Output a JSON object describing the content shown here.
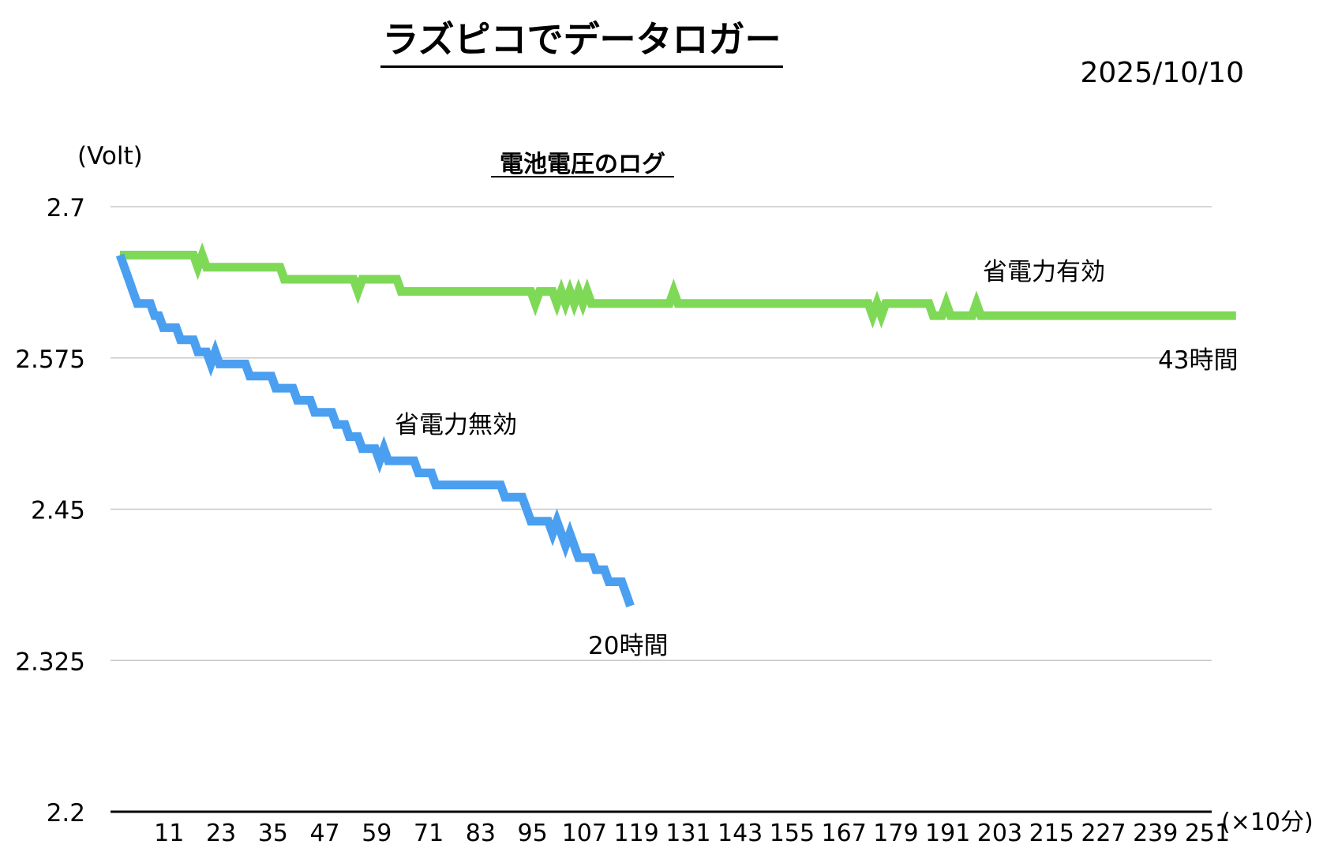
{
  "header": {
    "title": "ラズピコでデータロガー",
    "date": "2025/10/10"
  },
  "chart_data": {
    "type": "line",
    "title": "電池電圧のログ",
    "ylabel": "(Volt)",
    "xlabel": "(×10分)",
    "ylim": [
      2.2,
      2.7
    ],
    "yticks": [
      "2.2",
      "2.325",
      "2.45",
      "2.575",
      "2.7"
    ],
    "xlim": [
      0,
      258
    ],
    "xticks": [
      11,
      23,
      35,
      47,
      59,
      71,
      83,
      95,
      107,
      119,
      131,
      143,
      155,
      167,
      179,
      191,
      203,
      215,
      227,
      239,
      251
    ],
    "grid": true,
    "legend": "none",
    "series": [
      {
        "name": "省電力有効",
        "color": "#7ed957",
        "end_label": "43時間",
        "points": [
          [
            0,
            2.66
          ],
          [
            17,
            2.66
          ],
          [
            18,
            2.65
          ],
          [
            19,
            2.66
          ],
          [
            20,
            2.65
          ],
          [
            37,
            2.65
          ],
          [
            38,
            2.64
          ],
          [
            54,
            2.64
          ],
          [
            55,
            2.63
          ],
          [
            56,
            2.64
          ],
          [
            64,
            2.64
          ],
          [
            65,
            2.63
          ],
          [
            95,
            2.63
          ],
          [
            96,
            2.62
          ],
          [
            97,
            2.63
          ],
          [
            100,
            2.63
          ],
          [
            101,
            2.62
          ],
          [
            102,
            2.63
          ],
          [
            103,
            2.62
          ],
          [
            104,
            2.63
          ],
          [
            105,
            2.62
          ],
          [
            106,
            2.63
          ],
          [
            107,
            2.62
          ],
          [
            108,
            2.63
          ],
          [
            109,
            2.62
          ],
          [
            127,
            2.62
          ],
          [
            128,
            2.63
          ],
          [
            129,
            2.62
          ],
          [
            173,
            2.62
          ],
          [
            174,
            2.61
          ],
          [
            175,
            2.62
          ],
          [
            176,
            2.61
          ],
          [
            177,
            2.62
          ],
          [
            187,
            2.62
          ],
          [
            188,
            2.61
          ],
          [
            190,
            2.61
          ],
          [
            191,
            2.62
          ],
          [
            192,
            2.61
          ],
          [
            197,
            2.61
          ],
          [
            198,
            2.62
          ],
          [
            199,
            2.61
          ],
          [
            258,
            2.61
          ]
        ]
      },
      {
        "name": "省電力無効",
        "color": "#4a9ff0",
        "end_label": "20時間",
        "points": [
          [
            0,
            2.66
          ],
          [
            1,
            2.65
          ],
          [
            2,
            2.64
          ],
          [
            3,
            2.63
          ],
          [
            4,
            2.62
          ],
          [
            7,
            2.62
          ],
          [
            8,
            2.61
          ],
          [
            9,
            2.61
          ],
          [
            10,
            2.6
          ],
          [
            13,
            2.6
          ],
          [
            14,
            2.59
          ],
          [
            17,
            2.59
          ],
          [
            18,
            2.58
          ],
          [
            20,
            2.58
          ],
          [
            21,
            2.57
          ],
          [
            22,
            2.58
          ],
          [
            23,
            2.57
          ],
          [
            29,
            2.57
          ],
          [
            30,
            2.56
          ],
          [
            35,
            2.56
          ],
          [
            36,
            2.55
          ],
          [
            40,
            2.55
          ],
          [
            41,
            2.54
          ],
          [
            44,
            2.54
          ],
          [
            45,
            2.53
          ],
          [
            49,
            2.53
          ],
          [
            50,
            2.52
          ],
          [
            52,
            2.52
          ],
          [
            53,
            2.51
          ],
          [
            55,
            2.51
          ],
          [
            56,
            2.5
          ],
          [
            59,
            2.5
          ],
          [
            60,
            2.49
          ],
          [
            61,
            2.5
          ],
          [
            62,
            2.49
          ],
          [
            68,
            2.49
          ],
          [
            69,
            2.48
          ],
          [
            72,
            2.48
          ],
          [
            73,
            2.47
          ],
          [
            88,
            2.47
          ],
          [
            89,
            2.46
          ],
          [
            93,
            2.46
          ],
          [
            94,
            2.45
          ],
          [
            95,
            2.44
          ],
          [
            99,
            2.44
          ],
          [
            100,
            2.43
          ],
          [
            101,
            2.44
          ],
          [
            102,
            2.43
          ],
          [
            103,
            2.42
          ],
          [
            104,
            2.43
          ],
          [
            105,
            2.42
          ],
          [
            106,
            2.41
          ],
          [
            109,
            2.41
          ],
          [
            110,
            2.4
          ],
          [
            112,
            2.4
          ],
          [
            113,
            2.39
          ],
          [
            116,
            2.39
          ],
          [
            117,
            2.38
          ],
          [
            118,
            2.37
          ]
        ]
      }
    ]
  }
}
